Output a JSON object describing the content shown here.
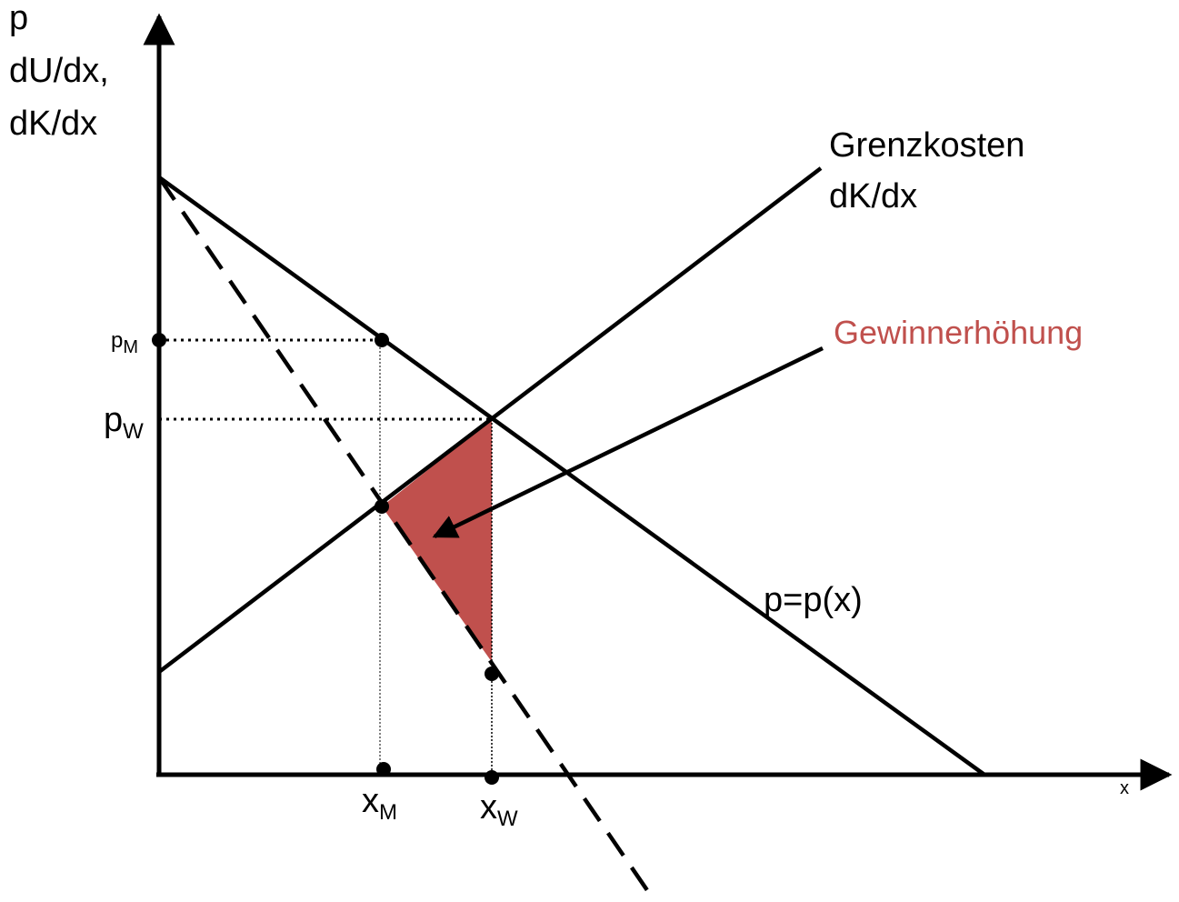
{
  "labels": {
    "y_axis": [
      "p",
      "dU/dx,",
      "dK/dx"
    ],
    "x_axis": "x",
    "mc_curve": [
      "Grenzkosten",
      "dK/dx"
    ],
    "profit_increase": "Gewinnerhöhung",
    "demand_curve": "p=p(x)",
    "p_m": {
      "base": "p",
      "sub": "M"
    },
    "p_w": {
      "base": "p",
      "sub": "W"
    },
    "x_m": {
      "base": "x",
      "sub": "M"
    },
    "x_w": {
      "base": "x",
      "sub": "W"
    }
  },
  "colors": {
    "line": "#000000",
    "highlight_fill": "#c0504d",
    "highlight_text": "#c0504d"
  }
}
